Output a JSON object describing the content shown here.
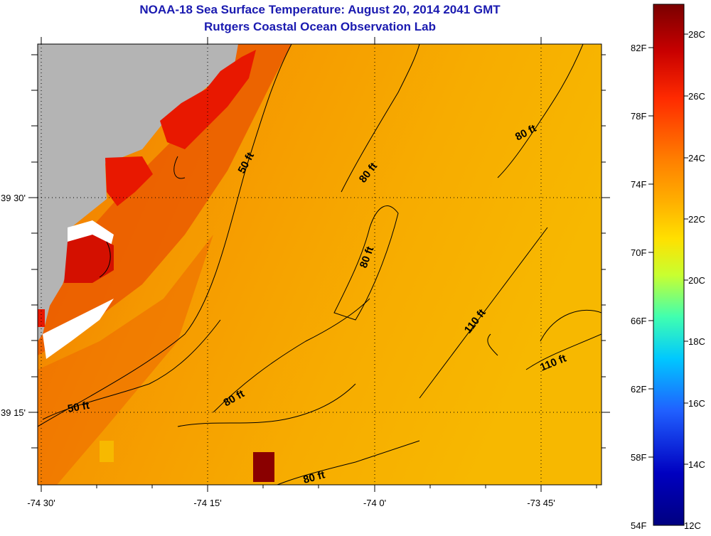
{
  "title": {
    "line1": "NOAA-18 Sea Surface Temperature:  August 20, 2014 2041 GMT",
    "line2": "Rutgers Coastal Ocean Observation Lab"
  },
  "axes": {
    "lon_ticks": [
      {
        "value": -74.5,
        "label": "-74 30'"
      },
      {
        "value": -74.25,
        "label": "-74 15'"
      },
      {
        "value": -74.0,
        "label": "-74 0'"
      },
      {
        "value": -73.75,
        "label": "-73 45'"
      }
    ],
    "lat_ticks": [
      {
        "value": 39.5,
        "label": "39 30'"
      },
      {
        "value": 39.25,
        "label": "39 15'"
      }
    ]
  },
  "contour_labels": [
    {
      "text": "50 ft"
    },
    {
      "text": "80 ft"
    },
    {
      "text": "80 ft"
    },
    {
      "text": "80 ft"
    },
    {
      "text": "110 ft"
    },
    {
      "text": "110 ft"
    },
    {
      "text": "50 ft"
    },
    {
      "text": "80 ft"
    },
    {
      "text": "80 ft"
    }
  ],
  "colorbar": {
    "fahrenheit_labels": [
      "82F",
      "78F",
      "74F",
      "70F",
      "66F",
      "62F",
      "58F",
      "54F"
    ],
    "celsius_labels": [
      "28C",
      "26C",
      "24C",
      "22C",
      "20C",
      "18C",
      "16C",
      "14C",
      "12C"
    ],
    "colors": [
      "#7a0000",
      "#c80000",
      "#ff2a00",
      "#ff8000",
      "#ffb000",
      "#ffe000",
      "#c8ff30",
      "#40ffb0",
      "#00c8ff",
      "#2060ff",
      "#0000c0",
      "#000080"
    ]
  },
  "legend_colors": {
    "land": "#b4b4b4",
    "no_data": "#ffffff",
    "warm_water": "#f5a000",
    "hot_patch": "#8a0000"
  }
}
